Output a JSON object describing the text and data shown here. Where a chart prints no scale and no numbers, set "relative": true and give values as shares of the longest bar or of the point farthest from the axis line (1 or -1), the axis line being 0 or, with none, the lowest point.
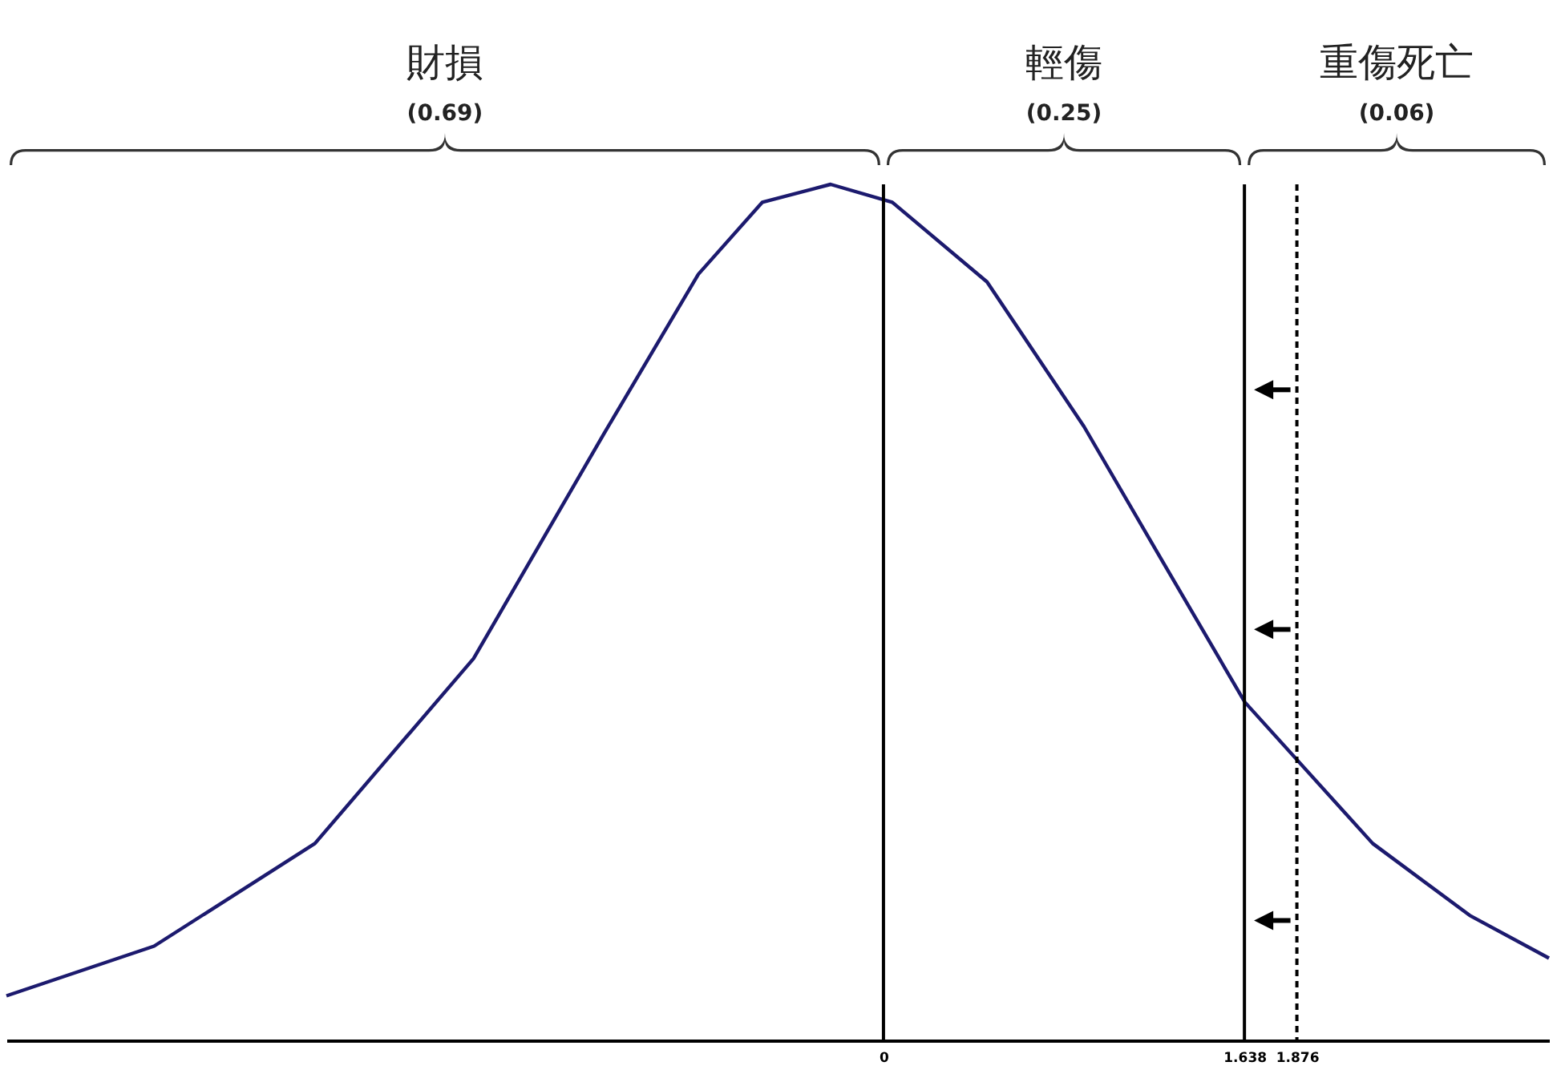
{
  "chart_data": {
    "type": "line",
    "relative": true,
    "x": [
      -3.98,
      -3.31,
      -2.58,
      -1.86,
      -1.27,
      -0.84,
      -0.55,
      -0.24,
      0.04,
      0.47,
      0.91,
      1.27,
      1.64,
      2.22,
      2.66,
      3.02
    ],
    "series": [
      {
        "color": "#1c1a6e",
        "values": [
          0.052,
          0.11,
          0.23,
          0.446,
          0.708,
          0.895,
          0.979,
          1.0,
          0.979,
          0.886,
          0.717,
          0.558,
          0.395,
          0.23,
          0.146,
          0.096
        ]
      }
    ],
    "xlim": [
      -3.98,
      3.02
    ],
    "xticks": [
      0,
      1.638,
      1.876
    ],
    "ref_lines": [
      {
        "axis": "x",
        "value": 0,
        "line_style": "solid"
      },
      {
        "axis": "x",
        "value": 1.638,
        "line_style": "solid"
      },
      {
        "axis": "x",
        "value": 1.876,
        "line_style": "dashed"
      }
    ],
    "annotations": [
      "財損",
      "(0.69)",
      "輕傷",
      "(0.25)",
      "重傷死亡",
      "(0.06)"
    ],
    "marker": "none",
    "line_style": "solid"
  }
}
